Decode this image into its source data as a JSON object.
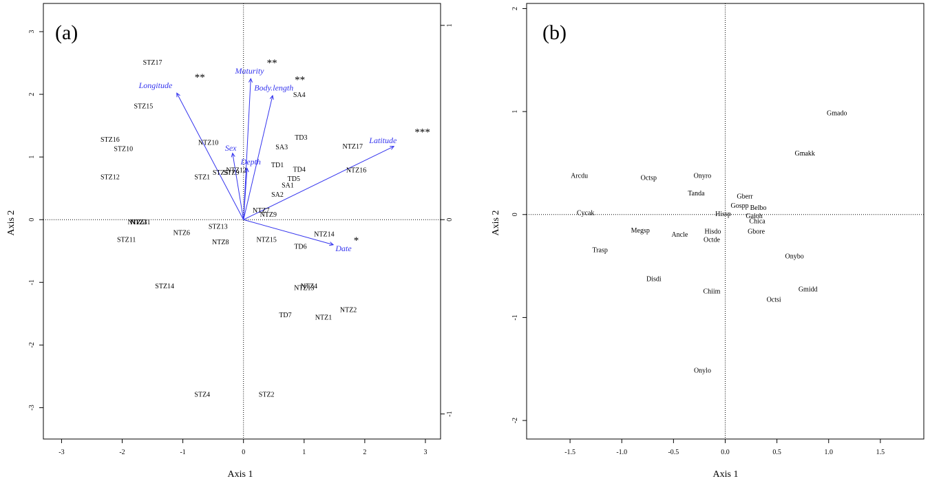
{
  "chart_data": [
    {
      "type": "scatter",
      "panel_label": "(a)",
      "xlabel": "Axis 1",
      "ylabel": "Axis 2",
      "xlim": [
        -3.3,
        3.25
      ],
      "ylim": [
        -3.5,
        3.45
      ],
      "xticks": [
        -3,
        -2,
        -1,
        0,
        1,
        2,
        3
      ],
      "yticks": [
        -3,
        -2,
        -1,
        0,
        1,
        2,
        3
      ],
      "xtick_labels": [
        "-3",
        "-2",
        "-1",
        "0",
        "1",
        "2",
        "3"
      ],
      "ytick_labels": [
        "-3",
        "-2",
        "-1",
        "0",
        "1",
        "2",
        "3"
      ],
      "right_ticks": [
        -1,
        0,
        1
      ],
      "right_tick_labels": [
        "-1",
        "0",
        "1"
      ],
      "right_axis_scale": 3.1,
      "grid": false,
      "zero_lines": true,
      "sites": [
        {
          "label": "STZ17",
          "x": -1.5,
          "y": 2.5
        },
        {
          "label": "STZ15",
          "x": -1.65,
          "y": 1.8
        },
        {
          "label": "STZ16",
          "x": -2.2,
          "y": 1.27
        },
        {
          "label": "STZ10",
          "x": -1.98,
          "y": 1.12
        },
        {
          "label": "STZ12",
          "x": -2.2,
          "y": 0.67
        },
        {
          "label": "NTZ10",
          "x": -0.58,
          "y": 1.22
        },
        {
          "label": "STZ1",
          "x": -0.68,
          "y": 0.67
        },
        {
          "label": "STZ5",
          "x": -0.38,
          "y": 0.74
        },
        {
          "label": "STZ9",
          "x": -0.2,
          "y": 0.74
        },
        {
          "label": "NTZ12",
          "x": -0.12,
          "y": 0.78
        },
        {
          "label": "SA4",
          "x": 0.92,
          "y": 1.98
        },
        {
          "label": "TD3",
          "x": 0.95,
          "y": 1.3
        },
        {
          "label": "SA3",
          "x": 0.63,
          "y": 1.15
        },
        {
          "label": "NTZ17",
          "x": 1.8,
          "y": 1.16
        },
        {
          "label": "NTZ16",
          "x": 1.86,
          "y": 0.78
        },
        {
          "label": "TD1",
          "x": 0.56,
          "y": 0.86
        },
        {
          "label": "TD4",
          "x": 0.92,
          "y": 0.79
        },
        {
          "label": "TD5",
          "x": 0.83,
          "y": 0.64
        },
        {
          "label": "SA1",
          "x": 0.73,
          "y": 0.54
        },
        {
          "label": "SA2",
          "x": 0.56,
          "y": 0.39
        },
        {
          "label": "NTZ7",
          "x": 0.29,
          "y": 0.14
        },
        {
          "label": "NTZ9",
          "x": 0.41,
          "y": 0.07
        },
        {
          "label": "NTZ5",
          "x": -1.77,
          "y": -0.05
        },
        {
          "label": "NTZ3",
          "x": -1.73,
          "y": -0.05
        },
        {
          "label": "NTZ11",
          "x": -1.7,
          "y": -0.05
        },
        {
          "label": "STZ11",
          "x": -1.93,
          "y": -0.33
        },
        {
          "label": "NTZ6",
          "x": -1.02,
          "y": -0.22
        },
        {
          "label": "STZ13",
          "x": -0.42,
          "y": -0.12
        },
        {
          "label": "NTZ8",
          "x": -0.38,
          "y": -0.37
        },
        {
          "label": "NTZ15",
          "x": 0.38,
          "y": -0.33
        },
        {
          "label": "NTZ14",
          "x": 1.33,
          "y": -0.24
        },
        {
          "label": "TD6",
          "x": 0.94,
          "y": -0.44
        },
        {
          "label": "STZ14",
          "x": -1.3,
          "y": -1.07
        },
        {
          "label": "NTZ4",
          "x": 1.08,
          "y": -1.07
        },
        {
          "label": "NTZ13",
          "x": 1.0,
          "y": -1.1
        },
        {
          "label": "NTZ2",
          "x": 1.73,
          "y": -1.45
        },
        {
          "label": "TD7",
          "x": 0.69,
          "y": -1.53
        },
        {
          "label": "NTZ1",
          "x": 1.32,
          "y": -1.57
        },
        {
          "label": "STZ4",
          "x": -0.68,
          "y": -2.8
        },
        {
          "label": "STZ2",
          "x": 0.38,
          "y": -2.8
        }
      ],
      "vectors": [
        {
          "label": "Longitude",
          "x": -1.1,
          "y": 2.02,
          "sig": "**",
          "label_x": -1.45,
          "label_y": 2.1,
          "sig_x": -0.72,
          "sig_y": 2.22
        },
        {
          "label": "Maturity",
          "x": 0.12,
          "y": 2.25,
          "sig": "**",
          "label_x": 0.1,
          "label_y": 2.33,
          "sig_x": 0.47,
          "sig_y": 2.45
        },
        {
          "label": "Body.length",
          "x": 0.48,
          "y": 1.98,
          "sig": "**",
          "label_x": 0.5,
          "label_y": 2.06,
          "sig_x": 0.93,
          "sig_y": 2.18
        },
        {
          "label": "Latitude",
          "x": 2.48,
          "y": 1.17,
          "sig": "***",
          "label_x": 2.3,
          "label_y": 1.22,
          "sig_x": 2.95,
          "sig_y": 1.35
        },
        {
          "label": "Sex",
          "x": -0.18,
          "y": 1.06,
          "sig": "",
          "label_x": -0.21,
          "label_y": 1.1,
          "sig_x": 0,
          "sig_y": 0
        },
        {
          "label": "Depth",
          "x": 0.06,
          "y": 0.82,
          "sig": "",
          "label_x": 0.12,
          "label_y": 0.88,
          "sig_x": 0,
          "sig_y": 0
        },
        {
          "label": "Date",
          "x": 1.48,
          "y": -0.4,
          "sig": "*",
          "label_x": 1.65,
          "label_y": -0.5,
          "sig_x": 1.86,
          "sig_y": -0.38
        }
      ],
      "vector_color": "#3333ee"
    },
    {
      "type": "scatter",
      "panel_label": "(b)",
      "xlabel": "Axis 1",
      "ylabel": "Axis 2",
      "xlim": [
        -1.92,
        1.92
      ],
      "ylim": [
        -2.18,
        2.05
      ],
      "xticks": [
        -1.5,
        -1,
        -0.5,
        0,
        0.5,
        1,
        1.5
      ],
      "yticks": [
        -2,
        -1,
        0,
        1,
        2
      ],
      "xtick_labels": [
        "-1.5",
        "-1.0",
        "-0.5",
        "0.0",
        "0.5",
        "1.0",
        "1.5"
      ],
      "ytick_labels": [
        "-2",
        "-1",
        "0",
        "1",
        "2"
      ],
      "grid": false,
      "zero_lines": true,
      "species": [
        {
          "label": "Gmado",
          "x": 1.08,
          "y": 0.98
        },
        {
          "label": "Gmakk",
          "x": 0.77,
          "y": 0.59
        },
        {
          "label": "Arcdu",
          "x": -1.41,
          "y": 0.37
        },
        {
          "label": "Octsp",
          "x": -0.74,
          "y": 0.35
        },
        {
          "label": "Onyro",
          "x": -0.22,
          "y": 0.37
        },
        {
          "label": "Tanda",
          "x": -0.28,
          "y": 0.2
        },
        {
          "label": "Gberr",
          "x": 0.19,
          "y": 0.17
        },
        {
          "label": "Gospp",
          "x": 0.14,
          "y": 0.08
        },
        {
          "label": "Belbo",
          "x": 0.32,
          "y": 0.06
        },
        {
          "label": "Cycak",
          "x": -1.35,
          "y": 0.01
        },
        {
          "label": "Hissp",
          "x": -0.02,
          "y": 0.0
        },
        {
          "label": "Gaioh",
          "x": 0.28,
          "y": -0.02
        },
        {
          "label": "Chica",
          "x": 0.31,
          "y": -0.07
        },
        {
          "label": "Megsp",
          "x": -0.82,
          "y": -0.16
        },
        {
          "label": "Ancle",
          "x": -0.44,
          "y": -0.2
        },
        {
          "label": "Hisdo",
          "x": -0.12,
          "y": -0.17
        },
        {
          "label": "Gbore",
          "x": 0.3,
          "y": -0.17
        },
        {
          "label": "Octde",
          "x": -0.13,
          "y": -0.25
        },
        {
          "label": "Trasp",
          "x": -1.21,
          "y": -0.35
        },
        {
          "label": "Onybo",
          "x": 0.67,
          "y": -0.41
        },
        {
          "label": "Disdi",
          "x": -0.69,
          "y": -0.63
        },
        {
          "label": "Chiim",
          "x": -0.13,
          "y": -0.75
        },
        {
          "label": "Gmidd",
          "x": 0.8,
          "y": -0.73
        },
        {
          "label": "Octsi",
          "x": 0.47,
          "y": -0.83
        },
        {
          "label": "Onylo",
          "x": -0.22,
          "y": -1.52
        }
      ]
    }
  ]
}
